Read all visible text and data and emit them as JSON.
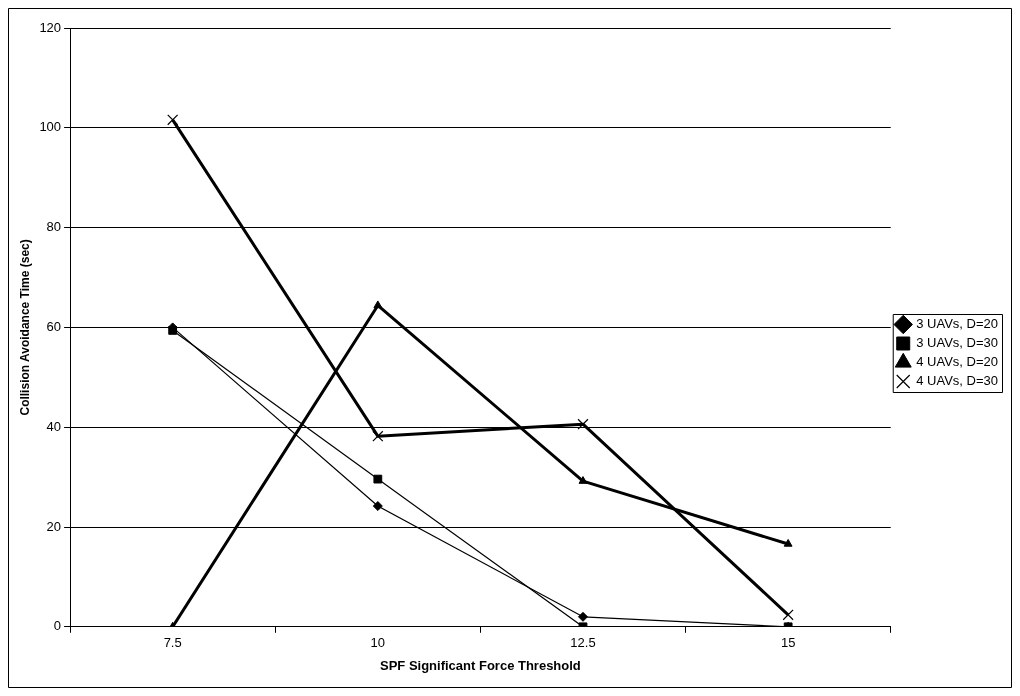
{
  "chart_data": {
    "type": "line",
    "xlabel": "SPF Significant Force Threshold",
    "ylabel": "Collision Avoidance Time (sec)",
    "categories": [
      "7.5",
      "10",
      "12.5",
      "15"
    ],
    "series": [
      {
        "name": "3 UAVs, D=20",
        "color": "#000000",
        "marker": "diamond",
        "values": [
          60,
          24.2,
          2,
          0
        ]
      },
      {
        "name": "3 UAVs, D=30",
        "color": "#000000",
        "marker": "square",
        "values": [
          59.4,
          29.6,
          0,
          0
        ]
      },
      {
        "name": "4 UAVs, D=20",
        "color": "#000000",
        "marker": "triangle",
        "values": [
          0,
          64.4,
          29.2,
          16.6
        ]
      },
      {
        "name": "4 UAVs, D=30",
        "color": "#000000",
        "marker": "cross",
        "values": [
          101.6,
          38.2,
          40.6,
          2.4
        ]
      }
    ],
    "ylim": [
      0,
      120
    ],
    "yticks": [
      0,
      20,
      40,
      60,
      80,
      100,
      120
    ],
    "grid": "y",
    "legend": "right",
    "line_style": "solid"
  }
}
